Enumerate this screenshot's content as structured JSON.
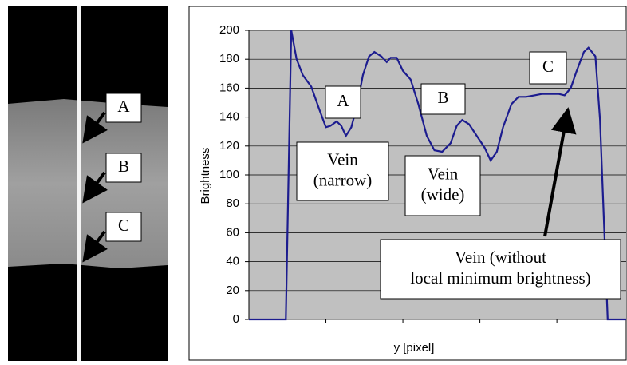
{
  "image": {
    "labels": [
      "A",
      "B",
      "C"
    ]
  },
  "chart_data": {
    "type": "line",
    "x_label": "y [pixel]",
    "y_label": "Brightness",
    "x": [
      0,
      48,
      55,
      62,
      70,
      81,
      91,
      100,
      106,
      114,
      120,
      126,
      133,
      141,
      148,
      156,
      163,
      172,
      179,
      184,
      192,
      200,
      210,
      220,
      231,
      241,
      251,
      262,
      270,
      277,
      286,
      296,
      306,
      314,
      322,
      330,
      341,
      350,
      360,
      371,
      381,
      392,
      402,
      410,
      418,
      425,
      435,
      441,
      450,
      456,
      462,
      466,
      490
    ],
    "values": [
      0,
      0,
      200,
      180,
      169,
      161,
      146,
      133,
      134,
      137,
      134,
      127,
      133,
      149,
      169,
      182,
      185,
      182,
      178,
      181,
      181,
      172,
      166,
      149,
      127,
      117,
      116,
      122,
      134,
      138,
      135,
      127,
      119,
      110,
      116,
      133,
      149,
      154,
      154,
      155,
      156,
      156,
      156,
      155,
      160,
      171,
      185,
      188,
      182,
      138,
      55,
      0,
      0
    ],
    "color": "#1c1c8f",
    "xlim": [
      0,
      490
    ],
    "xticks": [
      100,
      200,
      300,
      400
    ],
    "ylim": [
      0,
      200
    ],
    "yticks": [
      0,
      20,
      40,
      60,
      80,
      100,
      120,
      140,
      160,
      180,
      200
    ],
    "grid": true,
    "annotations": [
      {
        "lines": [
          "A"
        ]
      },
      {
        "lines": [
          "Vein",
          "(narrow)"
        ]
      },
      {
        "lines": [
          "B"
        ]
      },
      {
        "lines": [
          "Vein",
          "(wide)"
        ]
      },
      {
        "lines": [
          "C"
        ]
      },
      {
        "lines": [
          "Vein (without",
          "local minimum brightness)"
        ]
      }
    ]
  }
}
